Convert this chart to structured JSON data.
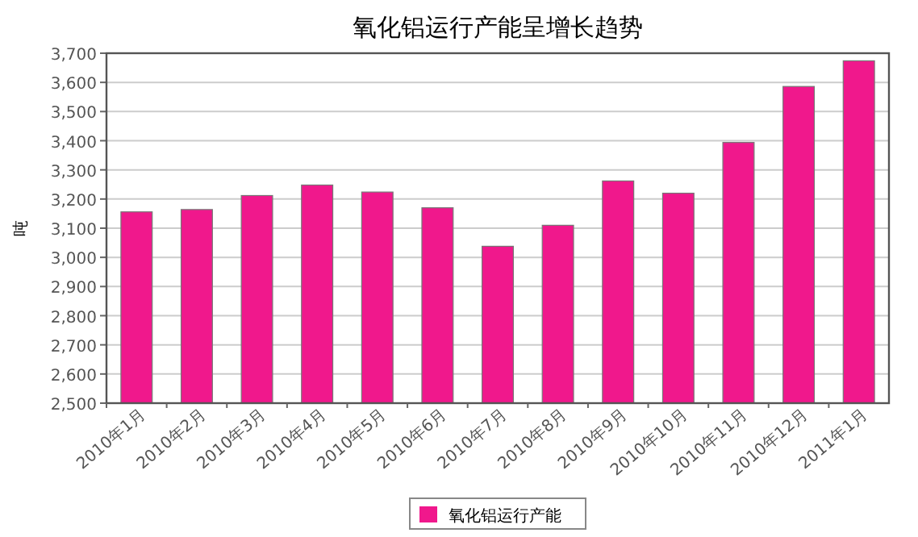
{
  "chart_data": {
    "type": "bar",
    "title": "氧化铝运行产能呈增长趋势",
    "ylabel": "吨",
    "categories": [
      "2010年1月",
      "2010年2月",
      "2010年3月",
      "2010年4月",
      "2010年5月",
      "2010年6月",
      "2010年7月",
      "2010年8月",
      "2010年9月",
      "2010年10月",
      "2010年11月",
      "2010年12月",
      "2011年1月"
    ],
    "series": [
      {
        "name": "氧化铝运行产能",
        "color": "#f0188c",
        "values": [
          3156,
          3164,
          3212,
          3248,
          3224,
          3170,
          3038,
          3110,
          3262,
          3220,
          3394,
          3586,
          3674
        ]
      }
    ],
    "ylim": [
      2500,
      3700
    ],
    "yticks": [
      {
        "value": 2500,
        "label": "2,500"
      },
      {
        "value": 2600,
        "label": "2,600"
      },
      {
        "value": 2700,
        "label": "2,700"
      },
      {
        "value": 2800,
        "label": "2,800"
      },
      {
        "value": 2900,
        "label": "2,900"
      },
      {
        "value": 3000,
        "label": "3,000"
      },
      {
        "value": 3100,
        "label": "3,100"
      },
      {
        "value": 3200,
        "label": "3,200"
      },
      {
        "value": 3300,
        "label": "3,300"
      },
      {
        "value": 3400,
        "label": "3,400"
      },
      {
        "value": 3500,
        "label": "3,500"
      },
      {
        "value": 3600,
        "label": "3,600"
      },
      {
        "value": 3700,
        "label": "3,700"
      }
    ],
    "grid": "y",
    "legend": "bottom"
  }
}
